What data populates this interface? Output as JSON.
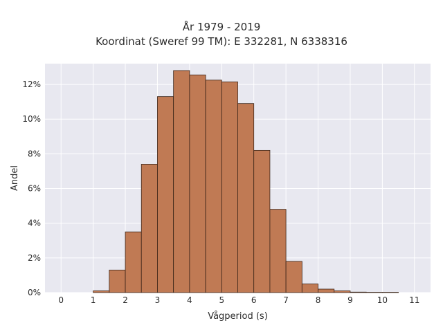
{
  "chart_data": {
    "type": "bar",
    "title_lines": [
      "År 1979 - 2019",
      "Koordinat (Sweref 99 TM): E 332281, N 6338316"
    ],
    "xlabel": "Vågperiod (s)",
    "ylabel": "Andel",
    "xlim": [
      -0.5,
      11.5
    ],
    "ylim": [
      0,
      13.2
    ],
    "x_ticks": [
      0,
      1,
      2,
      3,
      4,
      5,
      6,
      7,
      8,
      9,
      10,
      11
    ],
    "x_tick_labels": [
      "0",
      "1",
      "2",
      "3",
      "4",
      "5",
      "6",
      "7",
      "8",
      "9",
      "10",
      "11"
    ],
    "y_ticks": [
      0,
      2,
      4,
      6,
      8,
      10,
      12
    ],
    "y_tick_labels": [
      "0%",
      "2%",
      "4%",
      "6%",
      "8%",
      "10%",
      "12%"
    ],
    "bin_width": 0.5,
    "bins": [
      {
        "start": 1.0,
        "value": 0.1
      },
      {
        "start": 1.5,
        "value": 1.3
      },
      {
        "start": 2.0,
        "value": 3.5
      },
      {
        "start": 2.5,
        "value": 7.4
      },
      {
        "start": 3.0,
        "value": 11.3
      },
      {
        "start": 3.5,
        "value": 12.8
      },
      {
        "start": 4.0,
        "value": 12.55
      },
      {
        "start": 4.5,
        "value": 12.25
      },
      {
        "start": 5.0,
        "value": 12.15
      },
      {
        "start": 5.5,
        "value": 10.9
      },
      {
        "start": 6.0,
        "value": 8.2
      },
      {
        "start": 6.5,
        "value": 4.8
      },
      {
        "start": 7.0,
        "value": 1.8
      },
      {
        "start": 7.5,
        "value": 0.5
      },
      {
        "start": 8.0,
        "value": 0.2
      },
      {
        "start": 8.5,
        "value": 0.1
      },
      {
        "start": 9.0,
        "value": 0.03
      },
      {
        "start": 9.5,
        "value": 0.02
      },
      {
        "start": 10.0,
        "value": 0.02
      }
    ],
    "grid": true,
    "colors": {
      "bar_fill": "#c07a54",
      "bar_edge": "#3a2418",
      "plot_background": "#e8e8f0",
      "grid": "#ffffff"
    }
  }
}
